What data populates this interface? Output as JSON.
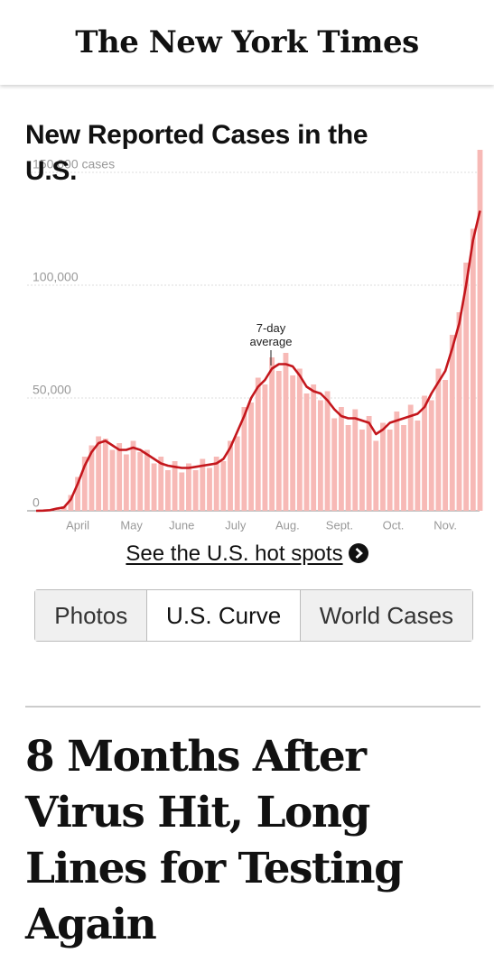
{
  "header": {
    "logo": "The New York Times"
  },
  "chart_data": {
    "type": "bar",
    "title": "New Reported Cases in the U.S.",
    "annotation": "7-day average",
    "x": [
      0,
      4,
      8,
      12,
      16,
      20,
      24,
      28,
      32,
      36,
      40,
      44,
      48,
      52,
      56,
      60,
      64,
      68,
      72,
      76,
      80,
      84,
      88,
      92,
      96,
      100,
      104,
      108,
      112,
      116,
      120,
      124,
      128,
      132,
      136,
      140,
      144,
      148,
      152,
      156,
      160,
      164,
      168,
      172,
      176,
      180,
      184,
      188,
      192,
      196,
      200,
      204,
      208,
      212,
      216,
      220,
      224,
      228,
      232,
      236,
      240,
      244,
      248,
      252,
      256
    ],
    "series": [
      {
        "type": "bar",
        "color": "#f7b9b6",
        "values": [
          0,
          200,
          500,
          1200,
          2000,
          7000,
          15000,
          24000,
          29000,
          33000,
          32000,
          27000,
          30000,
          25000,
          31000,
          26000,
          27000,
          21000,
          24000,
          18000,
          22000,
          17000,
          21000,
          18000,
          23000,
          19000,
          24000,
          22000,
          31000,
          33000,
          46000,
          48000,
          59000,
          56000,
          68000,
          62000,
          70000,
          60000,
          63000,
          52000,
          56000,
          49000,
          53000,
          41000,
          46000,
          38000,
          45000,
          36000,
          42000,
          31000,
          39000,
          36000,
          44000,
          38000,
          47000,
          40000,
          51000,
          49000,
          63000,
          58000,
          78000,
          88000,
          110000,
          125000,
          160000
        ]
      },
      {
        "type": "line",
        "color": "#c4161c",
        "values": [
          0,
          100,
          300,
          1000,
          1500,
          5000,
          12000,
          20000,
          26000,
          30000,
          31000,
          29000,
          27000,
          27000,
          28000,
          27000,
          25000,
          23000,
          21000,
          20000,
          19500,
          19000,
          19000,
          19500,
          20000,
          20500,
          21000,
          23000,
          28000,
          35000,
          42000,
          50000,
          55000,
          58000,
          63000,
          65000,
          65000,
          64000,
          60000,
          55000,
          53000,
          52000,
          49000,
          45000,
          42000,
          41000,
          41000,
          40000,
          39000,
          34000,
          36000,
          39000,
          40000,
          41000,
          42000,
          43000,
          46000,
          52000,
          57000,
          62000,
          72000,
          83000,
          100000,
          120000,
          133000
        ]
      }
    ],
    "xlim": [
      0,
      256
    ],
    "xticks": [
      {
        "value": 24,
        "label": "April"
      },
      {
        "value": 55,
        "label": "May"
      },
      {
        "value": 84,
        "label": "June"
      },
      {
        "value": 115,
        "label": "July"
      },
      {
        "value": 145,
        "label": "Aug."
      },
      {
        "value": 175,
        "label": "Sept."
      },
      {
        "value": 206,
        "label": "Oct."
      },
      {
        "value": 236,
        "label": "Nov."
      }
    ],
    "ylim": [
      0,
      165000
    ],
    "yticks": [
      0,
      {
        "value": 50000,
        "label": "50,000"
      },
      {
        "value": 100000,
        "label": "100,000"
      },
      {
        "value": 150000,
        "label": "150,000 cases"
      }
    ],
    "grid": true
  },
  "link": "See the U.S. hot spots",
  "tabs": [
    "Photos",
    "U.S. Curve",
    "World Cases"
  ],
  "selected_tab": "U.S. Curve",
  "headline": "8 Months After Virus Hit, Long Lines for Testing Again"
}
